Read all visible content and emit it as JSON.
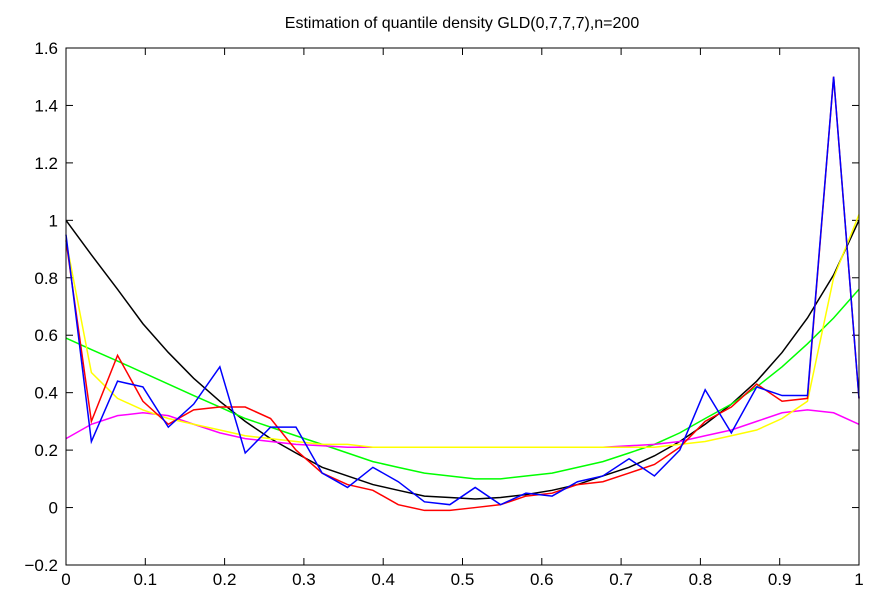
{
  "chart_data": {
    "type": "line",
    "title": "Estimation of quantile density GLD(0,7,7,7),n=200",
    "x": [
      0,
      0.032,
      0.065,
      0.097,
      0.129,
      0.161,
      0.194,
      0.226,
      0.258,
      0.29,
      0.323,
      0.355,
      0.387,
      0.419,
      0.452,
      0.484,
      0.516,
      0.548,
      0.58,
      0.613,
      0.645,
      0.677,
      0.71,
      0.742,
      0.774,
      0.806,
      0.839,
      0.871,
      0.903,
      0.935,
      0.968,
      1.0
    ],
    "series": [
      {
        "color": "#000000",
        "values": [
          1.0,
          0.88,
          0.76,
          0.64,
          0.54,
          0.45,
          0.37,
          0.3,
          0.24,
          0.19,
          0.14,
          0.11,
          0.08,
          0.06,
          0.04,
          0.035,
          0.03,
          0.035,
          0.045,
          0.06,
          0.08,
          0.11,
          0.14,
          0.18,
          0.23,
          0.29,
          0.36,
          0.44,
          0.54,
          0.66,
          0.81,
          1.0
        ]
      },
      {
        "color": "#00ff00",
        "values": [
          0.59,
          0.55,
          0.51,
          0.47,
          0.43,
          0.39,
          0.35,
          0.31,
          0.28,
          0.25,
          0.22,
          0.19,
          0.16,
          0.14,
          0.12,
          0.11,
          0.1,
          0.1,
          0.11,
          0.12,
          0.14,
          0.16,
          0.19,
          0.22,
          0.26,
          0.31,
          0.36,
          0.42,
          0.49,
          0.57,
          0.66,
          0.76
        ]
      },
      {
        "color": "#ff00ff",
        "values": [
          0.24,
          0.29,
          0.32,
          0.33,
          0.32,
          0.29,
          0.26,
          0.24,
          0.23,
          0.22,
          0.215,
          0.21,
          0.21,
          0.21,
          0.21,
          0.21,
          0.21,
          0.21,
          0.21,
          0.21,
          0.21,
          0.21,
          0.215,
          0.22,
          0.23,
          0.25,
          0.27,
          0.3,
          0.33,
          0.34,
          0.33,
          0.29
        ]
      },
      {
        "color": "#ffff00",
        "values": [
          0.93,
          0.47,
          0.38,
          0.34,
          0.31,
          0.29,
          0.27,
          0.25,
          0.24,
          0.23,
          0.22,
          0.22,
          0.21,
          0.21,
          0.21,
          0.21,
          0.21,
          0.21,
          0.21,
          0.21,
          0.21,
          0.21,
          0.21,
          0.21,
          0.22,
          0.23,
          0.25,
          0.27,
          0.31,
          0.37,
          0.8,
          1.02
        ]
      },
      {
        "color": "#ff0000",
        "values": [
          0.93,
          0.3,
          0.53,
          0.37,
          0.29,
          0.34,
          0.35,
          0.35,
          0.31,
          0.2,
          0.12,
          0.08,
          0.06,
          0.01,
          -0.01,
          -0.01,
          0.0,
          0.01,
          0.04,
          0.05,
          0.08,
          0.09,
          0.12,
          0.15,
          0.21,
          0.3,
          0.35,
          0.43,
          0.37,
          0.38,
          1.5,
          0.38
        ]
      },
      {
        "color": "#0000ff",
        "values": [
          0.95,
          0.23,
          0.44,
          0.42,
          0.28,
          0.36,
          0.49,
          0.19,
          0.28,
          0.28,
          0.12,
          0.07,
          0.14,
          0.09,
          0.02,
          0.01,
          0.07,
          0.01,
          0.05,
          0.04,
          0.09,
          0.11,
          0.17,
          0.11,
          0.2,
          0.41,
          0.26,
          0.42,
          0.39,
          0.39,
          1.5,
          0.38
        ]
      }
    ],
    "xlim": [
      0,
      1
    ],
    "xticks": [
      0,
      0.1,
      0.2,
      0.3,
      0.4,
      0.5,
      0.6,
      0.7,
      0.8,
      0.9,
      1
    ],
    "ylim": [
      -0.2,
      1.6
    ],
    "yticks": [
      {
        "value": -0.2,
        "label": "−0.2"
      },
      0,
      0.2,
      0.4,
      0.6,
      0.8,
      1,
      1.2,
      1.4,
      1.6
    ]
  }
}
